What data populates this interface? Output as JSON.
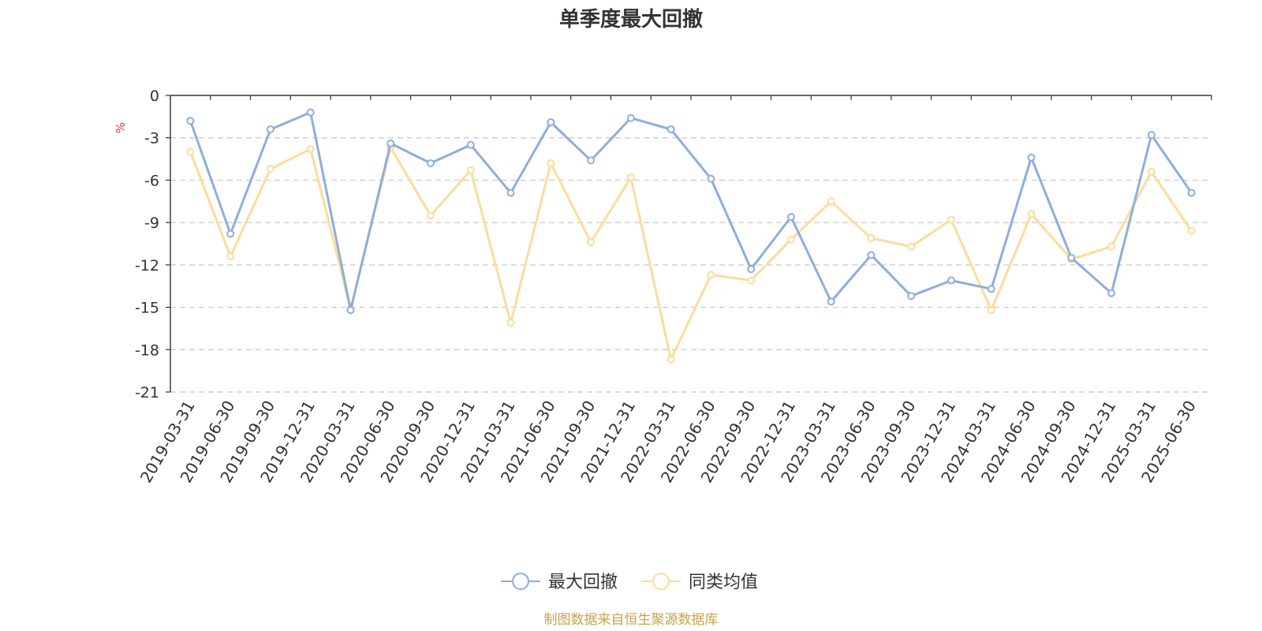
{
  "chart_data": {
    "type": "line",
    "title": "单季度最大回撤",
    "ylabel": "%",
    "ylim": [
      -21,
      0
    ],
    "yticks": [
      0,
      -3,
      -6,
      -9,
      -12,
      -15,
      -18,
      -21
    ],
    "grid": "horizontal-dashed",
    "legend_position": "bottom",
    "categories": [
      "2019-03-31",
      "2019-06-30",
      "2019-09-30",
      "2019-12-31",
      "2020-03-31",
      "2020-06-30",
      "2020-09-30",
      "2020-12-31",
      "2021-03-31",
      "2021-06-30",
      "2021-09-30",
      "2021-12-31",
      "2022-03-31",
      "2022-06-30",
      "2022-09-30",
      "2022-12-31",
      "2023-03-31",
      "2023-06-30",
      "2023-09-30",
      "2023-12-31",
      "2024-03-31",
      "2024-06-30",
      "2024-09-30",
      "2024-12-31",
      "2025-03-31",
      "2025-06-30"
    ],
    "series": [
      {
        "name": "最大回撤",
        "color": "#8eaedb",
        "values": [
          -1.8,
          -9.8,
          -2.4,
          -1.2,
          -15.2,
          -3.4,
          -4.8,
          -3.5,
          -6.9,
          -1.9,
          -4.6,
          -1.6,
          -2.4,
          -5.9,
          -12.3,
          -8.6,
          -14.6,
          -11.3,
          -14.2,
          -13.1,
          -13.7,
          -4.4,
          -11.5,
          -14.0,
          -2.8,
          -6.9
        ]
      },
      {
        "name": "同类均值",
        "color": "#fcdc9b",
        "values": [
          -4.0,
          -11.4,
          -5.2,
          -3.8,
          -15.1,
          -3.7,
          -8.5,
          -5.3,
          -16.1,
          -4.8,
          -10.4,
          -5.8,
          -18.7,
          -12.7,
          -13.1,
          -10.2,
          -7.5,
          -10.1,
          -10.7,
          -8.8,
          -15.2,
          -8.4,
          -11.6,
          -10.7,
          -5.4,
          -9.6
        ]
      }
    ]
  },
  "source_text": "制图数据来自恒生聚源数据库",
  "colors": {
    "axis": "#333333",
    "grid": "#c8c8c8",
    "unit": "#e53935",
    "source": "#c9a14a"
  }
}
